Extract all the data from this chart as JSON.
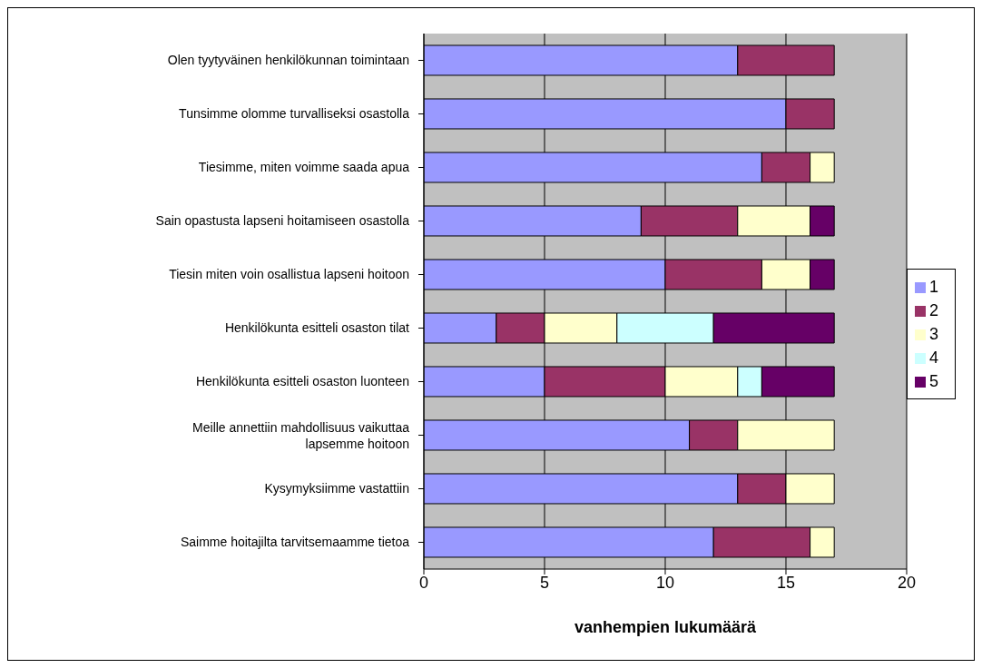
{
  "chart_data": {
    "type": "bar",
    "orientation": "horizontal",
    "stacked": true,
    "xlabel": "vanhempien lukumäärä",
    "categories": [
      "Olen tyytyväinen henkilökunnan toimintaan",
      "Tunsimme olomme turvalliseksi osastolla",
      "Tiesimme, miten voimme saada apua",
      "Sain opastusta lapseni hoitamiseen osastolla",
      "Tiesin miten voin osallistua lapseni hoitoon",
      "Henkilökunta esitteli osaston tilat",
      "Henkilökunta esitteli osaston luonteen",
      "Meille annettiin mahdollisuus vaikuttaa lapsemme hoitoon",
      "Kysymyksiimme vastattiin",
      "Saimme hoitajilta tarvitsemaamme tietoa"
    ],
    "series": [
      {
        "name": "1",
        "color": "#9999ff",
        "values": [
          13,
          15,
          14,
          9,
          10,
          3,
          5,
          11,
          13,
          12
        ]
      },
      {
        "name": "2",
        "color": "#993366",
        "values": [
          4,
          2,
          2,
          4,
          4,
          2,
          5,
          2,
          2,
          4
        ]
      },
      {
        "name": "3",
        "color": "#ffffcc",
        "values": [
          null,
          null,
          1,
          3,
          2,
          3,
          3,
          4,
          2,
          1
        ]
      },
      {
        "name": "4",
        "color": "#ccffff",
        "values": [
          null,
          null,
          null,
          null,
          null,
          4,
          1,
          null,
          null,
          null
        ]
      },
      {
        "name": "5",
        "color": "#660066",
        "values": [
          null,
          null,
          null,
          1,
          1,
          5,
          3,
          null,
          null,
          null
        ]
      }
    ],
    "xlim": [
      0,
      20
    ],
    "xticks": [
      0,
      5,
      10,
      15,
      20
    ],
    "grid": "x",
    "legend": "right"
  }
}
